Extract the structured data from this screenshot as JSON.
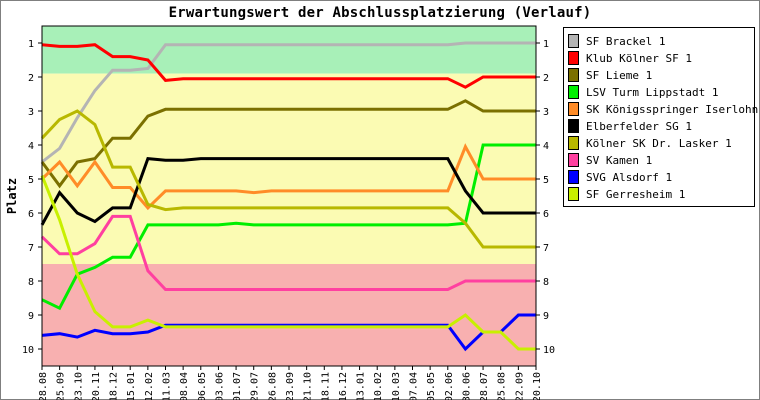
{
  "chart_data": {
    "type": "line",
    "title": "Erwartungswert der Abschlussplatzierung (Verlauf)",
    "xlabel": "",
    "ylabel": "Platz",
    "ylim": [
      10.5,
      0.5
    ],
    "y_inverted": true,
    "y_ticks": [
      "1",
      "2",
      "3",
      "4",
      "5",
      "6",
      "7",
      "8",
      "9",
      "10"
    ],
    "grid": false,
    "legend_position": "right",
    "categories": [
      "28.08",
      "25.09",
      "23.10",
      "20.11",
      "18.12",
      "15.01",
      "12.02",
      "11.03",
      "08.04",
      "06.05",
      "03.06",
      "01.07",
      "29.07",
      "26.08",
      "23.09",
      "21.10",
      "18.11",
      "16.12",
      "13.01",
      "10.02",
      "10.03",
      "07.04",
      "05.05",
      "02.06",
      "30.06",
      "28.07",
      "25.08",
      "22.09",
      "20.10"
    ],
    "bands": [
      {
        "from": 0.5,
        "to": 1.9,
        "color": "#a8f0b8"
      },
      {
        "from": 1.9,
        "to": 7.5,
        "color": "#fbfbb3"
      },
      {
        "from": 7.5,
        "to": 10.5,
        "color": "#f8b0b0"
      }
    ],
    "series": [
      {
        "name": "SF Brackel 1",
        "color": "#b4b4b4",
        "values": [
          4.5,
          4.1,
          3.2,
          2.4,
          1.8,
          1.8,
          1.75,
          1.05,
          1.05,
          1.05,
          1.05,
          1.05,
          1.05,
          1.05,
          1.05,
          1.05,
          1.05,
          1.05,
          1.05,
          1.05,
          1.05,
          1.05,
          1.05,
          1.05,
          1.0,
          1.0,
          1.0,
          1.0,
          1.0
        ]
      },
      {
        "name": "Klub Kölner SF 1",
        "color": "#ff0000",
        "values": [
          1.05,
          1.1,
          1.1,
          1.05,
          1.4,
          1.4,
          1.5,
          2.1,
          2.05,
          2.05,
          2.05,
          2.05,
          2.05,
          2.05,
          2.05,
          2.05,
          2.05,
          2.05,
          2.05,
          2.05,
          2.05,
          2.05,
          2.05,
          2.05,
          2.3,
          2.0,
          2.0,
          2.0,
          2.0
        ]
      },
      {
        "name": "SF Lieme 1",
        "color": "#7b7000",
        "values": [
          4.5,
          5.2,
          4.5,
          4.4,
          3.8,
          3.8,
          3.15,
          2.95,
          2.95,
          2.95,
          2.95,
          2.95,
          2.95,
          2.95,
          2.95,
          2.95,
          2.95,
          2.95,
          2.95,
          2.95,
          2.95,
          2.95,
          2.95,
          2.95,
          2.7,
          3.0,
          3.0,
          3.0,
          3.0
        ]
      },
      {
        "name": "LSV Turm Lippstadt 1",
        "color": "#00ee00",
        "values": [
          8.55,
          8.8,
          7.8,
          7.6,
          7.3,
          7.3,
          6.35,
          6.35,
          6.35,
          6.35,
          6.35,
          6.3,
          6.35,
          6.35,
          6.35,
          6.35,
          6.35,
          6.35,
          6.35,
          6.35,
          6.35,
          6.35,
          6.35,
          6.35,
          6.3,
          4.0,
          4.0,
          4.0,
          4.0
        ]
      },
      {
        "name": "SK Königsspringer Iserlohn 1",
        "color": "#ff8c28",
        "values": [
          5.0,
          4.5,
          5.2,
          4.5,
          5.25,
          5.25,
          5.85,
          5.35,
          5.35,
          5.35,
          5.35,
          5.35,
          5.4,
          5.35,
          5.35,
          5.35,
          5.35,
          5.35,
          5.35,
          5.35,
          5.35,
          5.35,
          5.35,
          5.35,
          4.05,
          5.0,
          5.0,
          5.0,
          5.0
        ]
      },
      {
        "name": "Elberfelder SG 1",
        "color": "#000000",
        "values": [
          6.35,
          5.4,
          6.0,
          6.25,
          5.85,
          5.85,
          4.4,
          4.45,
          4.45,
          4.4,
          4.4,
          4.4,
          4.4,
          4.4,
          4.4,
          4.4,
          4.4,
          4.4,
          4.4,
          4.4,
          4.4,
          4.4,
          4.4,
          4.4,
          5.35,
          6.0,
          6.0,
          6.0,
          6.0
        ]
      },
      {
        "name": "Kölner SK Dr. Lasker 1",
        "color": "#b8b800",
        "values": [
          3.8,
          3.25,
          3.0,
          3.4,
          4.65,
          4.65,
          5.75,
          5.9,
          5.85,
          5.85,
          5.85,
          5.85,
          5.85,
          5.85,
          5.85,
          5.85,
          5.85,
          5.85,
          5.85,
          5.85,
          5.85,
          5.85,
          5.85,
          5.85,
          6.3,
          7.0,
          7.0,
          7.0,
          7.0
        ]
      },
      {
        "name": "SV Kamen 1",
        "color": "#ff40a0",
        "values": [
          6.7,
          7.2,
          7.2,
          6.9,
          6.1,
          6.1,
          7.7,
          8.25,
          8.25,
          8.25,
          8.25,
          8.25,
          8.25,
          8.25,
          8.25,
          8.25,
          8.25,
          8.25,
          8.25,
          8.25,
          8.25,
          8.25,
          8.25,
          8.25,
          8.0,
          8.0,
          8.0,
          8.0,
          8.0
        ]
      },
      {
        "name": "SVG Alsdorf 1",
        "color": "#0000ff",
        "values": [
          9.6,
          9.55,
          9.65,
          9.45,
          9.55,
          9.55,
          9.5,
          9.3,
          9.3,
          9.3,
          9.3,
          9.3,
          9.3,
          9.3,
          9.3,
          9.3,
          9.3,
          9.3,
          9.3,
          9.3,
          9.3,
          9.3,
          9.3,
          9.3,
          10.0,
          9.5,
          9.5,
          9.0,
          9.0
        ]
      },
      {
        "name": "SF Gerresheim 1",
        "color": "#c8f000",
        "values": [
          4.9,
          6.2,
          7.8,
          8.9,
          9.35,
          9.35,
          9.15,
          9.35,
          9.35,
          9.35,
          9.35,
          9.35,
          9.35,
          9.35,
          9.35,
          9.35,
          9.35,
          9.35,
          9.35,
          9.35,
          9.35,
          9.35,
          9.35,
          9.35,
          9.0,
          9.5,
          9.5,
          10.0,
          10.0
        ]
      }
    ]
  }
}
